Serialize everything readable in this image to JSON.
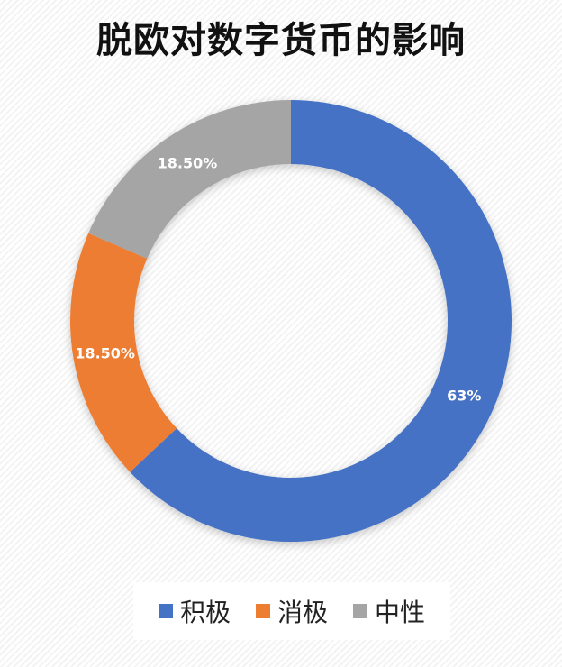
{
  "chart_data": {
    "type": "pie",
    "variant": "donut",
    "title": "脱欧对数字货币的影响",
    "categories": [
      "积极",
      "消极",
      "中性"
    ],
    "values": [
      63,
      18.5,
      18.5
    ],
    "data_labels": [
      "63%",
      "18.50%",
      "18.50%"
    ],
    "colors": [
      "#4472C4",
      "#ED7D31",
      "#A5A5A5"
    ],
    "legend_position": "bottom",
    "start_angle": "12 o'clock",
    "direction": "clockwise"
  }
}
